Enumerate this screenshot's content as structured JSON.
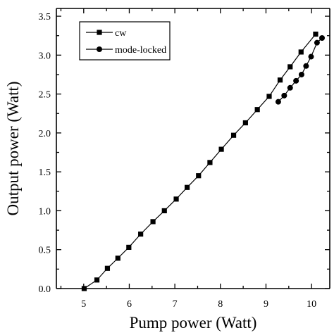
{
  "chart_data": {
    "type": "line",
    "title": "",
    "xlabel": "Pump power (Watt)",
    "ylabel": "Output power (Watt)",
    "xlim": [
      4.4,
      10.4
    ],
    "ylim": [
      0,
      3.6
    ],
    "xticks": [
      5,
      6,
      7,
      8,
      9,
      10
    ],
    "yticks": [
      0.0,
      0.5,
      1.0,
      1.5,
      2.0,
      2.5,
      3.0,
      3.5
    ],
    "ytick_labels": [
      "0.0",
      "0.5",
      "1.0",
      "1.5",
      "2.0",
      "2.5",
      "3.0",
      "3.5"
    ],
    "grid": false,
    "legend_position": "top-left",
    "series": [
      {
        "name": "cw",
        "marker": "square",
        "x": [
          5.01,
          5.29,
          5.52,
          5.75,
          5.99,
          6.25,
          6.52,
          6.77,
          7.03,
          7.27,
          7.52,
          7.77,
          8.02,
          8.29,
          8.55,
          8.81,
          9.07,
          9.31,
          9.53,
          9.77,
          10.09
        ],
        "y": [
          0.0,
          0.11,
          0.26,
          0.39,
          0.53,
          0.7,
          0.86,
          1.0,
          1.15,
          1.3,
          1.45,
          1.62,
          1.79,
          1.97,
          2.13,
          2.3,
          2.47,
          2.68,
          2.85,
          3.04,
          3.27
        ]
      },
      {
        "name": "mode-locked",
        "marker": "circle",
        "x": [
          9.27,
          9.4,
          9.53,
          9.66,
          9.78,
          9.88,
          9.99,
          10.12,
          10.23
        ],
        "y": [
          2.4,
          2.48,
          2.58,
          2.67,
          2.75,
          2.86,
          2.98,
          3.16,
          3.22
        ]
      }
    ]
  }
}
